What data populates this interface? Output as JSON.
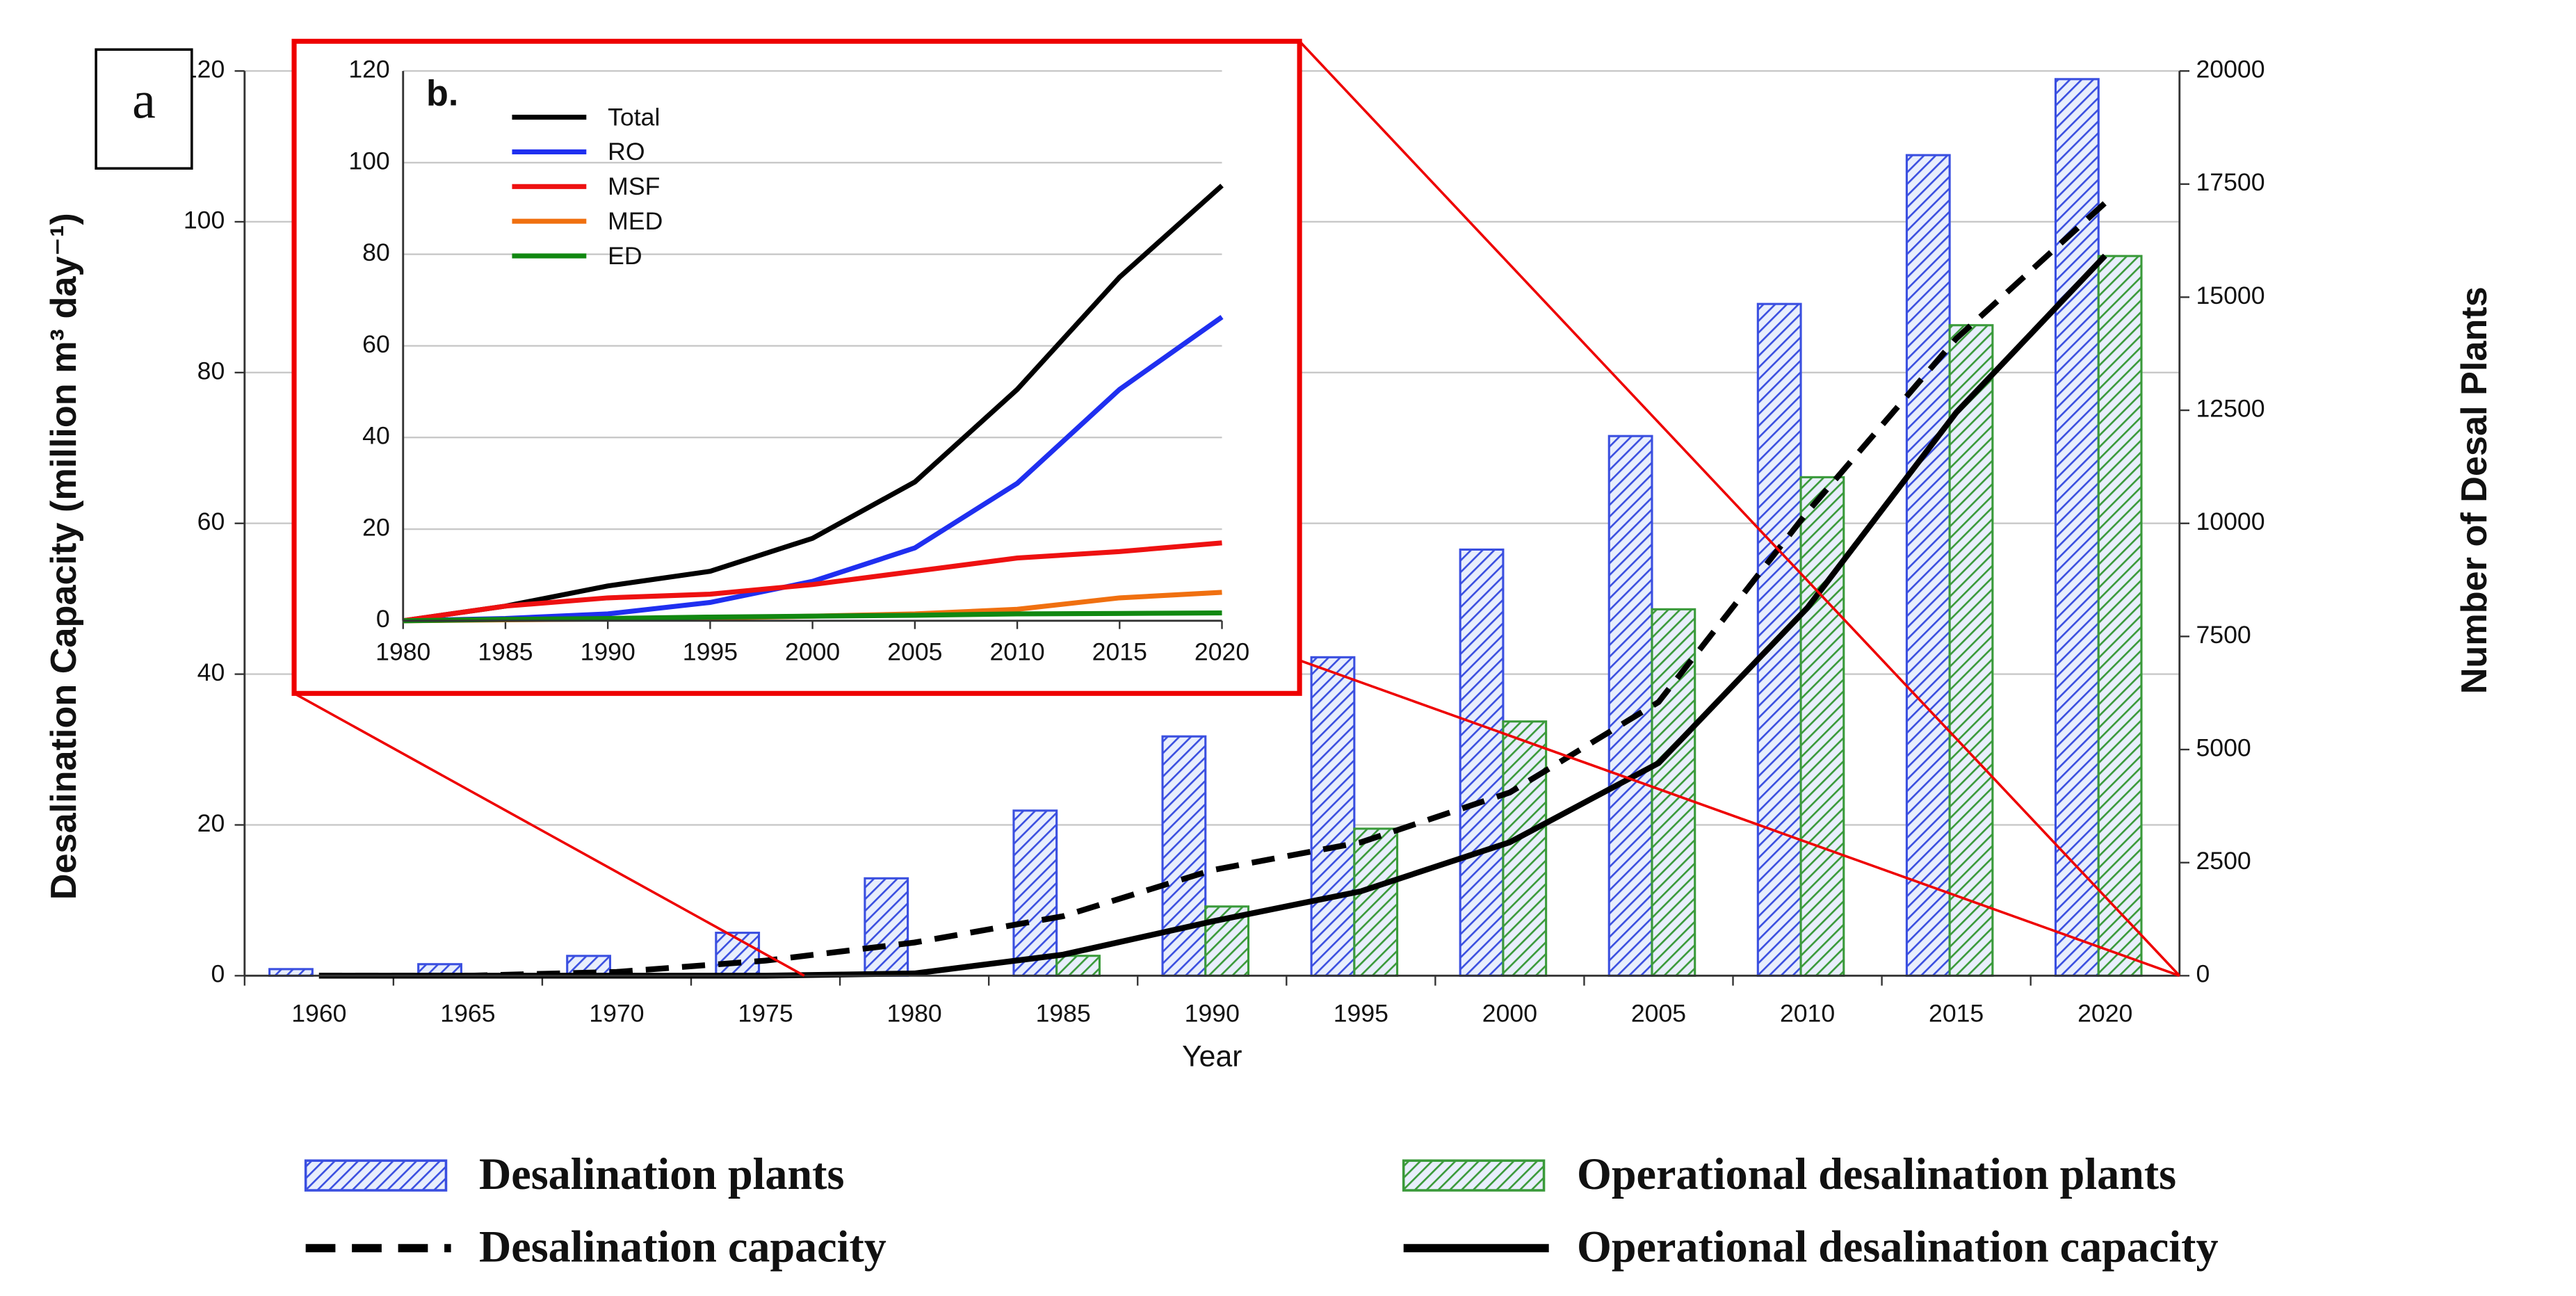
{
  "chart_data": [
    {
      "type": "combo",
      "label": "a",
      "x_label": "Year",
      "y_label": "Desalination Capacity (million m³ day⁻¹)",
      "y2_label": "Number of Desal Plants",
      "categories": [
        "1960",
        "1965",
        "1970",
        "1975",
        "1980",
        "1985",
        "1990",
        "1995",
        "2000",
        "2005",
        "2010",
        "2015",
        "2020"
      ],
      "ylim": [
        0,
        120
      ],
      "yticks": [
        0,
        20,
        40,
        60,
        80,
        100,
        120
      ],
      "y2lim": [
        0,
        20000
      ],
      "y2ticks": [
        0,
        2500,
        5000,
        7500,
        10000,
        12500,
        15000,
        17500,
        20000
      ],
      "grid": true,
      "series": [
        {
          "name": "Desalination plants",
          "type": "bar",
          "axis": "y2",
          "color": "#3a4fe0",
          "values": [
            146,
            255,
            438,
            949,
            2153,
            3650,
            5290,
            7040,
            9420,
            11930,
            14850,
            18140,
            19820
          ]
        },
        {
          "name": "Operational desalination plants",
          "type": "bar",
          "axis": "y2",
          "color": "#3a9a3a",
          "values": [
            0,
            0,
            0,
            0,
            0,
            440,
            1530,
            3250,
            5620,
            8100,
            11020,
            14380,
            15910
          ]
        },
        {
          "name": "Desalination capacity",
          "type": "line",
          "style": "dashed",
          "color": "#000000",
          "values": [
            0,
            0,
            0.5,
            2,
            4.4,
            7.9,
            14,
            17.7,
            24.3,
            36.3,
            61.5,
            84.5,
            102.5
          ]
        },
        {
          "name": "Operational desalination capacity",
          "type": "line",
          "style": "solid",
          "color": "#000000",
          "values": [
            0,
            0,
            0,
            0,
            0.3,
            2.8,
            7.2,
            11.2,
            17.7,
            28.2,
            48.8,
            74.7,
            95.5
          ]
        }
      ]
    },
    {
      "type": "line",
      "label": "b.",
      "x": [
        1980,
        1985,
        1990,
        1995,
        2000,
        2005,
        2010,
        2015,
        2020
      ],
      "xlim": [
        1980,
        2020
      ],
      "xticks": [
        1980,
        1985,
        1990,
        1995,
        2000,
        2005,
        2010,
        2015,
        2020
      ],
      "ylim": [
        0,
        120
      ],
      "yticks": [
        0,
        20,
        40,
        60,
        80,
        100,
        120
      ],
      "grid": true,
      "legend": "upper left",
      "series": [
        {
          "name": "Total",
          "color": "#000000",
          "values": [
            0,
            3.2,
            7.6,
            10.8,
            18,
            30.3,
            50.5,
            75,
            95
          ]
        },
        {
          "name": "RO",
          "color": "#1f2ff0",
          "values": [
            0,
            0.5,
            1.5,
            4,
            8.6,
            15.9,
            30,
            50.5,
            66.3
          ]
        },
        {
          "name": "MSF",
          "color": "#ee1111",
          "values": [
            0,
            3.2,
            5,
            5.8,
            7.9,
            10.8,
            13.7,
            15.1,
            17
          ]
        },
        {
          "name": "MED",
          "color": "#f07010",
          "values": [
            0,
            0.2,
            0.4,
            0.6,
            1,
            1.5,
            2.5,
            5,
            6.2
          ]
        },
        {
          "name": "ED",
          "color": "#118811",
          "values": [
            0,
            0.3,
            0.5,
            0.8,
            1,
            1.2,
            1.5,
            1.6,
            1.7
          ]
        }
      ]
    }
  ]
}
